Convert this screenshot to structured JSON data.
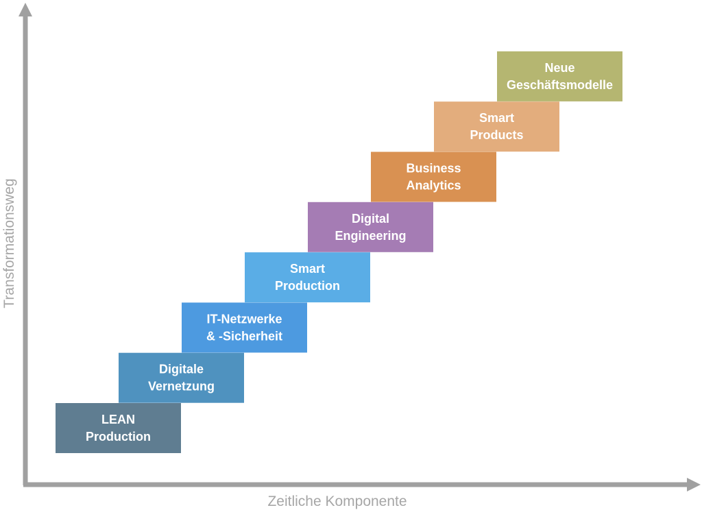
{
  "diagram": {
    "x_axis_label": "Zeitliche Komponente",
    "y_axis_label": "Transformationsweg",
    "steps": [
      {
        "lines": [
          "LEAN",
          "Production"
        ],
        "color": "#5f7d91"
      },
      {
        "lines": [
          "Digitale",
          "Vernetzung"
        ],
        "color": "#4f92bf"
      },
      {
        "lines": [
          "IT-Netzwerke",
          "& -Sicherheit"
        ],
        "color": "#4d9ae0"
      },
      {
        "lines": [
          "Smart",
          "Production"
        ],
        "color": "#5aade6"
      },
      {
        "lines": [
          "Digital",
          "Engineering"
        ],
        "color": "#a57cb4"
      },
      {
        "lines": [
          "Business",
          "Analytics"
        ],
        "color": "#d99152"
      },
      {
        "lines": [
          "Smart",
          "Products"
        ],
        "color": "#e3ad7d"
      },
      {
        "lines": [
          "Neue",
          "Geschäftsmodelle"
        ],
        "color": "#b5b671"
      }
    ]
  }
}
